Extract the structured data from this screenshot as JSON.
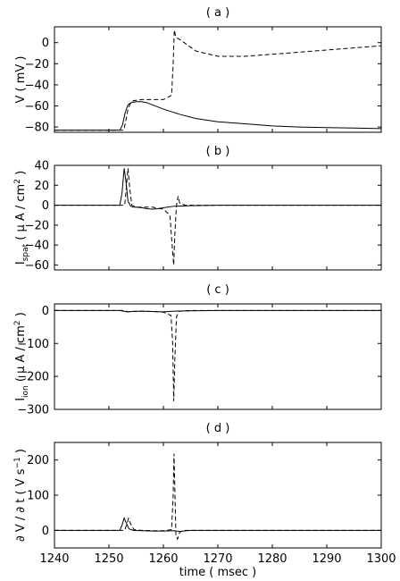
{
  "chart_data": [
    {
      "type": "line",
      "title": "( a )",
      "ylabel": "V ( mV )",
      "xlim": [
        1240,
        1300
      ],
      "ylim": [
        -85,
        15
      ],
      "xticks": [
        1240,
        1250,
        1260,
        1270,
        1280,
        1290,
        1300
      ],
      "yticks": [
        -80,
        -60,
        -40,
        -20,
        0
      ],
      "ytick_labels": [
        "−80",
        "−60",
        "−40",
        "−20",
        "0"
      ],
      "xlabel_visible": false,
      "series": [
        {
          "style": "solid",
          "x": [
            1240,
            1252,
            1252.5,
            1253,
            1253.5,
            1254,
            1255,
            1256,
            1257,
            1258,
            1260,
            1263,
            1266,
            1270,
            1275,
            1280,
            1285,
            1290,
            1295,
            1300
          ],
          "y": [
            -83,
            -83,
            -78,
            -66,
            -59,
            -57,
            -56,
            -56,
            -57,
            -59,
            -63,
            -68,
            -72,
            -75,
            -77,
            -79,
            -80,
            -80.5,
            -81,
            -81.5
          ]
        },
        {
          "style": "dashed",
          "x": [
            1240,
            1252.7,
            1253,
            1253.5,
            1254,
            1254.5,
            1256,
            1258,
            1260,
            1261.5,
            1261.8,
            1262,
            1262.3,
            1263,
            1266,
            1270,
            1275,
            1280,
            1285,
            1290,
            1295,
            1300
          ],
          "y": [
            -83,
            -83,
            -77,
            -63,
            -57,
            -55,
            -54,
            -54,
            -54,
            -50,
            -20,
            12,
            5,
            3,
            -8,
            -13,
            -13,
            -11,
            -9,
            -7,
            -5,
            -3
          ]
        }
      ]
    },
    {
      "type": "line",
      "title": "( b )",
      "ylabel_main": "I",
      "ylabel_sub": "spat",
      "ylabel_rest": " ( μ A / cm",
      "ylabel_sup": "2",
      "ylabel_end": " )",
      "xlim": [
        1240,
        1300
      ],
      "ylim": [
        -65,
        40
      ],
      "xticks": [
        1240,
        1250,
        1260,
        1270,
        1280,
        1290,
        1300
      ],
      "yticks": [
        -60,
        -40,
        -20,
        0,
        20,
        40
      ],
      "ytick_labels": [
        "−60",
        "−40",
        "−20",
        "0",
        "20",
        "40"
      ],
      "xlabel_visible": false,
      "series": [
        {
          "style": "solid",
          "x": [
            1240,
            1252,
            1252.4,
            1252.8,
            1253.1,
            1253.5,
            1254,
            1254.5,
            1255,
            1256,
            1257,
            1258,
            1259,
            1260,
            1262,
            1265,
            1270,
            1300
          ],
          "y": [
            0,
            0,
            12,
            37,
            25,
            4,
            -1,
            -2,
            -2,
            -2.5,
            -3.5,
            -4,
            -3.5,
            -2.5,
            -1,
            -0.5,
            0,
            0
          ]
        },
        {
          "style": "dashed",
          "x": [
            1240,
            1252.9,
            1253.2,
            1253.5,
            1253.8,
            1254.2,
            1255,
            1256,
            1258,
            1260,
            1261.2,
            1261.6,
            1261.9,
            1262.1,
            1262.4,
            1262.7,
            1263,
            1264,
            1270,
            1300
          ],
          "y": [
            0,
            0,
            18,
            37,
            18,
            0,
            -2,
            -2,
            -2,
            -4,
            -10,
            -40,
            -60,
            -30,
            0,
            9,
            2,
            0,
            0,
            0
          ]
        }
      ]
    },
    {
      "type": "line",
      "title": "( c )",
      "ylabel_main": "I",
      "ylabel_sub": "ion",
      "ylabel_rest": " ( μ A / cm",
      "ylabel_sup": "2",
      "ylabel_end": " )",
      "xlim": [
        1240,
        1300
      ],
      "ylim": [
        -300,
        20
      ],
      "xticks": [
        1240,
        1250,
        1260,
        1270,
        1280,
        1290,
        1300
      ],
      "yticks": [
        -300,
        -200,
        -100,
        0
      ],
      "ytick_labels": [
        "−300",
        "−200",
        "−100",
        "0"
      ],
      "xlabel_visible": false,
      "series": [
        {
          "style": "solid",
          "x": [
            1240,
            1252,
            1253,
            1253.5,
            1254,
            1256,
            1258,
            1260,
            1262,
            1265,
            1270,
            1300
          ],
          "y": [
            0,
            0,
            -3,
            -4,
            -3,
            -2,
            -3,
            -4,
            -2,
            -1,
            0,
            0
          ]
        },
        {
          "style": "dashed",
          "x": [
            1240,
            1252.8,
            1253.5,
            1254,
            1256,
            1258,
            1260,
            1261.4,
            1261.7,
            1261.9,
            1262.1,
            1262.4,
            1262.8,
            1263.5,
            1265,
            1300
          ],
          "y": [
            0,
            0,
            -4,
            -3,
            -2,
            -3,
            -5,
            -15,
            -100,
            -275,
            -150,
            -20,
            -3,
            -1,
            0,
            0
          ]
        }
      ]
    },
    {
      "type": "line",
      "title": "( d )",
      "ylabel_html": "∂ V / ∂ t ( V s",
      "ylabel_sup": "−1",
      "ylabel_end": " )",
      "xlabel": "time ( msec )",
      "xlim": [
        1240,
        1300
      ],
      "ylim": [
        -50,
        250
      ],
      "xticks": [
        1240,
        1250,
        1260,
        1270,
        1280,
        1290,
        1300
      ],
      "xtick_labels": [
        "1240",
        "1250",
        "1260",
        "1270",
        "1280",
        "1290",
        "1300"
      ],
      "yticks": [
        0,
        100,
        200
      ],
      "ytick_labels": [
        "0",
        "100",
        "200"
      ],
      "xlabel_visible": true,
      "series": [
        {
          "style": "solid",
          "x": [
            1240,
            1252,
            1252.4,
            1252.8,
            1253.2,
            1253.7,
            1254.5,
            1256,
            1258,
            1260,
            1262,
            1263,
            1265,
            1300
          ],
          "y": [
            0,
            0,
            15,
            35,
            20,
            4,
            0,
            -1,
            -2,
            -2,
            -1,
            -3,
            0,
            0
          ]
        },
        {
          "style": "dashed",
          "x": [
            1240,
            1252.9,
            1253.3,
            1253.6,
            1254,
            1254.6,
            1256,
            1258,
            1260,
            1261.5,
            1261.8,
            1261.95,
            1262.1,
            1262.3,
            1262.6,
            1263,
            1264,
            1300
          ],
          "y": [
            0,
            0,
            18,
            34,
            18,
            2,
            0,
            -1,
            -1,
            2,
            100,
            218,
            120,
            -15,
            -25,
            -5,
            0,
            0
          ]
        }
      ]
    }
  ]
}
